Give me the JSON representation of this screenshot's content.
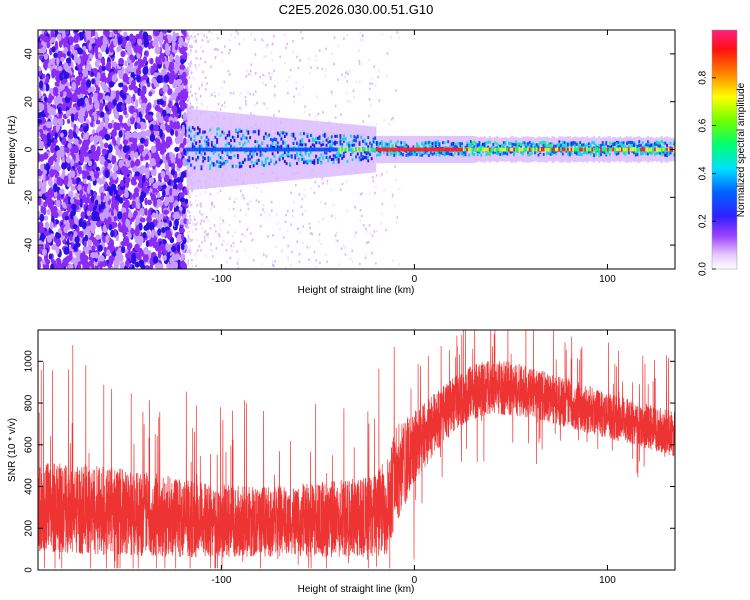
{
  "title": "C2E5.2026.030.00.51.G10",
  "colors": {
    "snr_line": "#ee3333",
    "spectrum_violet": "#7a1ff0",
    "spectrum_blue": "#1010d0",
    "spectrum_cyan": "#10d8d8",
    "spectrum_red": "#ff2020"
  },
  "chart_data": [
    {
      "type": "heatmap",
      "title": "C2E5.2026.030.00.51.G10",
      "xlabel": "Height of straight line (km)",
      "ylabel": "Frequency (Hz)",
      "xlim": [
        -195,
        135
      ],
      "ylim": [
        -50,
        50
      ],
      "xticks": [
        -100,
        0,
        100
      ],
      "xtick_labels": [
        "-100",
        "0",
        "100"
      ],
      "yticks": [
        -40,
        -20,
        0,
        20,
        40
      ],
      "ytick_labels": [
        "-40",
        "-20",
        "0",
        "20",
        "40"
      ],
      "colorbar": {
        "label": "Normalized spectral amplitude",
        "range": [
          0,
          1
        ],
        "ticks": [
          0.0,
          0.2,
          0.4,
          0.6,
          0.8
        ],
        "tick_labels": [
          "0.0",
          "0.2",
          "0.4",
          "0.6",
          "0.8"
        ]
      },
      "features": {
        "noise_region_x": [
          -195,
          -118
        ],
        "signal_band_start_x": -118,
        "signal_center_freq": 0,
        "strong_peak_x": [
          -20,
          25
        ]
      }
    },
    {
      "type": "line",
      "xlabel": "Height of straight line (km)",
      "ylabel": "SNR (10 * v/v)",
      "xlim": [
        -195,
        135
      ],
      "ylim": [
        0,
        1150
      ],
      "xticks": [
        -100,
        0,
        100
      ],
      "xtick_labels": [
        "-100",
        "0",
        "100"
      ],
      "yticks": [
        0,
        200,
        400,
        600,
        800,
        1000
      ],
      "ytick_labels": [
        "0",
        "200",
        "400",
        "600",
        "800",
        "1000"
      ],
      "envelope": {
        "x": [
          -195,
          -170,
          -140,
          -110,
          -80,
          -50,
          -30,
          -20,
          -15,
          -10,
          0,
          10,
          20,
          30,
          40,
          50,
          60,
          80,
          100,
          120,
          135
        ],
        "mean": [
          300,
          290,
          270,
          240,
          230,
          240,
          250,
          260,
          300,
          450,
          580,
          700,
          790,
          850,
          880,
          870,
          850,
          800,
          740,
          690,
          650
        ],
        "spread": [
          180,
          180,
          170,
          150,
          140,
          150,
          160,
          170,
          200,
          200,
          150,
          120,
          110,
          110,
          110,
          110,
          100,
          100,
          90,
          90,
          90
        ]
      }
    }
  ]
}
